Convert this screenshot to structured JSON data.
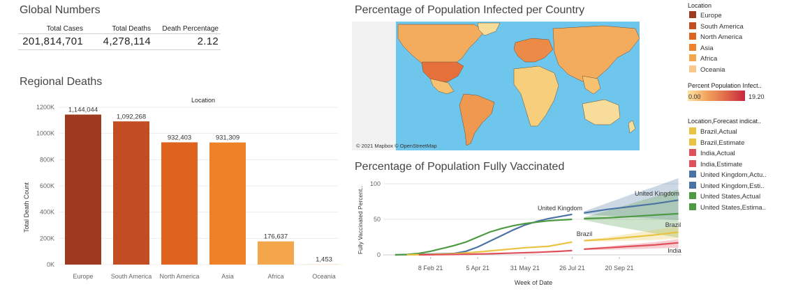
{
  "global": {
    "title": "Global Numbers",
    "headers": [
      "Total Cases",
      "Total Deaths",
      "Death Percentage"
    ],
    "values": [
      "201,814,701",
      "4,278,114",
      "2.12"
    ]
  },
  "regional": {
    "title": "Regional Deaths",
    "location_header": "Location"
  },
  "map": {
    "title": "Percentage of Population Infected per Country",
    "attribution": "© 2021 Mapbox © OpenStreetMap"
  },
  "vacc": {
    "title": "Percentage of Population Fully Vaccinated"
  },
  "legend": {
    "location_title": "Location",
    "locations": [
      {
        "label": "Europe",
        "color": "#9e3a20"
      },
      {
        "label": "South America",
        "color": "#c24d22"
      },
      {
        "label": "North America",
        "color": "#e0621f"
      },
      {
        "label": "Asia",
        "color": "#ef8228"
      },
      {
        "label": "Africa",
        "color": "#f4a64a"
      },
      {
        "label": "Oceania",
        "color": "#f9c98a"
      }
    ],
    "percent_title": "Percent Population Infect..",
    "percent_min": "0.00",
    "percent_max": "19.20",
    "forecast_title": "Location,Forecast indicat..",
    "forecast": [
      {
        "label": "Brazil,Actual",
        "color": "#e9c341"
      },
      {
        "label": "Brazil,Estimate",
        "color": "#e9c341"
      },
      {
        "label": "India,Actual",
        "color": "#e0505a"
      },
      {
        "label": "India,Estimate",
        "color": "#e0505a"
      },
      {
        "label": "United Kingdom,Actu..",
        "color": "#4b73a3"
      },
      {
        "label": "United Kingdom,Esti..",
        "color": "#4b73a3"
      },
      {
        "label": "United States,Actual",
        "color": "#4e9a43"
      },
      {
        "label": "United States,Estima..",
        "color": "#4e9a43"
      }
    ]
  },
  "chart_data": [
    {
      "type": "bar",
      "title": "Regional Deaths",
      "xlabel": "Location",
      "ylabel": "Total Death Count",
      "ylim": [
        0,
        1200000
      ],
      "yticks": [
        0,
        200000,
        400000,
        600000,
        800000,
        1000000,
        1200000
      ],
      "ytick_labels": [
        "0K",
        "200K",
        "400K",
        "600K",
        "800K",
        "1000K",
        "1200K"
      ],
      "categories": [
        "Europe",
        "South America",
        "North America",
        "Asia",
        "Africa",
        "Oceania"
      ],
      "values": [
        1144044,
        1092268,
        932403,
        931309,
        176637,
        1453
      ],
      "data_labels": [
        "1,144,044",
        "1,092,268",
        "932,403",
        "931,309",
        "176,637",
        "1,453"
      ],
      "colors": [
        "#9e3a20",
        "#c24d22",
        "#e0621f",
        "#ef8228",
        "#f4a64a",
        "#f9c98a"
      ],
      "grid": true
    },
    {
      "type": "line",
      "title": "Percentage of Population Fully Vaccinated",
      "xlabel": "Week of Date",
      "ylabel": "Fully Vaccinated Percent..",
      "ylim": [
        0,
        100
      ],
      "yticks": [
        0,
        50,
        100
      ],
      "xticks": [
        "2021-02-08",
        "2021-04-05",
        "2021-05-31",
        "2021-07-26",
        "2021-09-20"
      ],
      "xtick_labels": [
        "8 Feb 21",
        "5 Apr 21",
        "31 May 21",
        "26 Jul 21",
        "20 Sep 21"
      ],
      "xlim": [
        "2020-12-14",
        "2021-12-06"
      ],
      "series": [
        {
          "name": "United Kingdom",
          "kind": "actual",
          "color": "#4b73a3",
          "x": [
            "2020-12-28",
            "2021-01-11",
            "2021-01-25",
            "2021-02-08",
            "2021-02-22",
            "2021-03-08",
            "2021-03-22",
            "2021-04-05",
            "2021-04-19",
            "2021-05-03",
            "2021-05-17",
            "2021-05-31",
            "2021-06-14",
            "2021-06-28",
            "2021-07-12",
            "2021-07-26"
          ],
          "y": [
            0,
            0.3,
            0.7,
            1,
            1.5,
            2,
            5,
            11,
            19,
            27,
            35,
            42,
            47,
            51,
            54,
            57
          ]
        },
        {
          "name": "United Kingdom",
          "kind": "estimate",
          "color": "#4b73a3",
          "x": [
            "2021-08-09",
            "2021-09-06",
            "2021-10-04",
            "2021-11-01",
            "2021-11-29"
          ],
          "y": [
            59,
            64,
            68,
            72,
            77
          ],
          "band_low": [
            57,
            55,
            53,
            51,
            49
          ],
          "band_high": [
            61,
            73,
            85,
            96,
            108
          ]
        },
        {
          "name": "United States",
          "kind": "actual",
          "color": "#4e9a43",
          "x": [
            "2020-12-28",
            "2021-01-11",
            "2021-01-25",
            "2021-02-08",
            "2021-02-22",
            "2021-03-08",
            "2021-03-22",
            "2021-04-05",
            "2021-04-19",
            "2021-05-03",
            "2021-05-17",
            "2021-05-31",
            "2021-06-14",
            "2021-06-28",
            "2021-07-12",
            "2021-07-26"
          ],
          "y": [
            0,
            0.5,
            2,
            5,
            9,
            13,
            18,
            25,
            32,
            37,
            41,
            44,
            46,
            48,
            49,
            50
          ]
        },
        {
          "name": "United States",
          "kind": "estimate",
          "color": "#4e9a43",
          "x": [
            "2021-08-09",
            "2021-09-06",
            "2021-10-04",
            "2021-11-01",
            "2021-11-29"
          ],
          "y": [
            51,
            52,
            54,
            56,
            58
          ],
          "band_low": [
            49,
            42,
            36,
            30,
            24
          ],
          "band_high": [
            53,
            62,
            72,
            82,
            92
          ]
        },
        {
          "name": "Brazil",
          "kind": "actual",
          "color": "#e9c341",
          "x": [
            "2021-01-11",
            "2021-02-08",
            "2021-03-08",
            "2021-04-05",
            "2021-05-03",
            "2021-05-31",
            "2021-06-28",
            "2021-07-12",
            "2021-07-26"
          ],
          "y": [
            0,
            0.5,
            1.5,
            4,
            7,
            10,
            12,
            15,
            18
          ]
        },
        {
          "name": "Brazil",
          "kind": "estimate",
          "color": "#e9c341",
          "x": [
            "2021-08-09",
            "2021-09-06",
            "2021-10-04",
            "2021-11-01",
            "2021-11-29"
          ],
          "y": [
            20,
            22,
            25,
            28,
            32
          ],
          "band_low": [
            19,
            19,
            20,
            21,
            23
          ],
          "band_high": [
            21,
            25,
            30,
            35,
            40
          ]
        },
        {
          "name": "India",
          "kind": "actual",
          "color": "#e0505a",
          "x": [
            "2021-01-25",
            "2021-02-22",
            "2021-03-22",
            "2021-04-19",
            "2021-05-17",
            "2021-06-14",
            "2021-07-12",
            "2021-07-26"
          ],
          "y": [
            0,
            0.3,
            0.8,
            1.5,
            2.5,
            3.5,
            5,
            6
          ]
        },
        {
          "name": "India",
          "kind": "estimate",
          "color": "#e0505a",
          "x": [
            "2021-08-09",
            "2021-09-06",
            "2021-10-04",
            "2021-11-01",
            "2021-11-29"
          ],
          "y": [
            8,
            10,
            12,
            14,
            17
          ],
          "band_low": [
            7,
            7,
            8,
            9,
            10
          ],
          "band_high": [
            9,
            12,
            15,
            18,
            22
          ]
        }
      ],
      "annotations": [
        "United Kingdom",
        "Brazil",
        "United Kingdom",
        "Brazil",
        "India"
      ]
    }
  ]
}
